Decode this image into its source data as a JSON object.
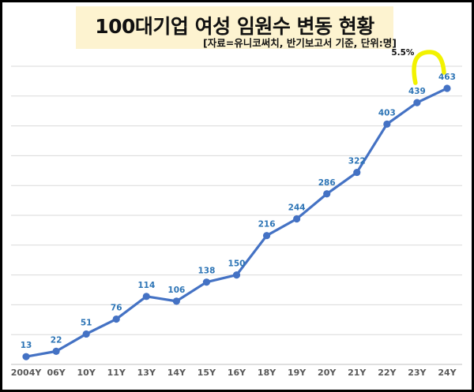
{
  "chart_data": {
    "type": "line",
    "title": "100대기업 여성 임원수 변동 현황",
    "subtitle": "[자료=유니코써치, 반기보고서 기준, 단위:명]",
    "categories": [
      "2004Y",
      "06Y",
      "10Y",
      "11Y",
      "13Y",
      "14Y",
      "15Y",
      "16Y",
      "18Y",
      "19Y",
      "20Y",
      "21Y",
      "22Y",
      "23Y",
      "24Y"
    ],
    "series": [
      {
        "values": [
          13,
          22,
          51,
          76,
          114,
          106,
          138,
          150,
          216,
          244,
          286,
          322,
          403,
          439,
          463
        ]
      }
    ],
    "ylim": [
      0,
      500
    ],
    "grid": true,
    "annotation": {
      "text": "5.5%",
      "from": "23Y",
      "to": "24Y"
    },
    "colors": {
      "line": "#4472c4",
      "data_label": "#2e75b6",
      "annotation_arc": "#f2f200",
      "title_bg": "#fdf3d0"
    }
  }
}
